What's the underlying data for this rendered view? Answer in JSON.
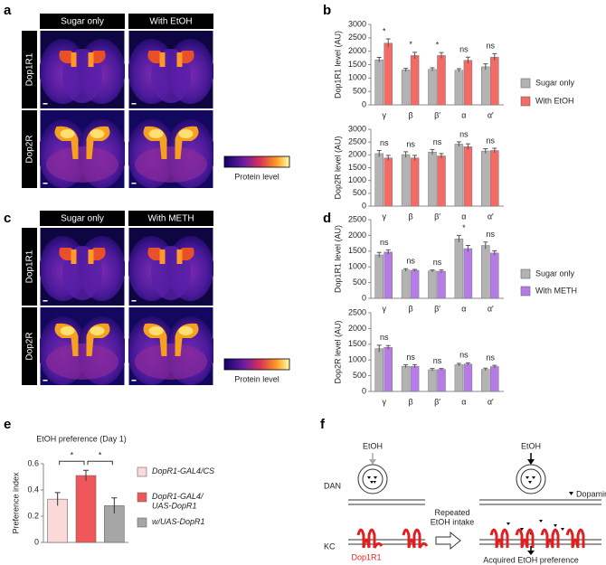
{
  "figure": {
    "panel_letters": [
      "a",
      "b",
      "c",
      "d",
      "e",
      "f"
    ],
    "panel_a": {
      "columns": [
        "Sugar only",
        "With EtOH"
      ],
      "rows": [
        "Dop1R1",
        "Dop2R"
      ],
      "colorbar_label": "Protein level"
    },
    "panel_c": {
      "columns": [
        "Sugar only",
        "With METH"
      ],
      "rows": [
        "Dop1R1",
        "Dop2R"
      ],
      "colorbar_label": "Protein level"
    },
    "panel_f": {
      "cell_top": "DAN",
      "cell_bottom": "KC",
      "stimulus_before": "EtOH",
      "stimulus_after": "EtOH",
      "transition": "Repeated EtOH intake",
      "ligand": "Dopamine",
      "receptor": "Dop1R1",
      "outcome": "Acquired EtOH preference"
    }
  },
  "chart_data": [
    {
      "type": "bar",
      "y_label": "Dop1R1 level (AU)",
      "categories": [
        "γ",
        "β",
        "β′",
        "α",
        "α′"
      ],
      "series": [
        {
          "name": "Sugar only",
          "color": "#b3b3b3",
          "values": [
            1680,
            1300,
            1320,
            1290,
            1420
          ],
          "errors": [
            90,
            60,
            60,
            60,
            110
          ]
        },
        {
          "name": "With EtOH",
          "color": "#f26b64",
          "values": [
            2300,
            1840,
            1840,
            1660,
            1780
          ],
          "errors": [
            160,
            120,
            110,
            120,
            130
          ]
        }
      ],
      "significance": [
        "*",
        "*",
        "*",
        "ns",
        "ns"
      ],
      "ylim": [
        0,
        3000
      ],
      "yticks": [
        0,
        500,
        1000,
        1500,
        2000,
        2500,
        3000
      ]
    },
    {
      "type": "bar",
      "y_label": "Dop2R level (AU)",
      "categories": [
        "γ",
        "β",
        "β′",
        "α",
        "α′"
      ],
      "series": [
        {
          "color": "#b3b3b3",
          "values": [
            2050,
            2010,
            2110,
            2420,
            2150
          ],
          "errors": [
            120,
            110,
            100,
            90,
            90
          ]
        },
        {
          "color": "#f26b64",
          "values": [
            1880,
            1880,
            1960,
            2320,
            2170
          ],
          "errors": [
            100,
            100,
            90,
            110,
            90
          ]
        }
      ],
      "significance": [
        "ns",
        "ns",
        "ns",
        "ns",
        "ns"
      ],
      "ylim": [
        0,
        3000
      ],
      "yticks": [
        0,
        500,
        1000,
        1500,
        2000,
        2500,
        3000
      ]
    },
    {
      "type": "bar",
      "y_label": "Dop1R1 level (AU)",
      "categories": [
        "γ",
        "β",
        "β′",
        "α",
        "α′"
      ],
      "series": [
        {
          "name": "Sugar only",
          "color": "#b3b3b3",
          "values": [
            1380,
            900,
            870,
            1890,
            1680
          ],
          "errors": [
            80,
            40,
            30,
            110,
            110
          ]
        },
        {
          "name": "With METH",
          "color": "#b57ce8",
          "values": [
            1470,
            890,
            860,
            1580,
            1440
          ],
          "errors": [
            70,
            30,
            40,
            100,
            70
          ]
        }
      ],
      "significance": [
        "ns",
        "ns",
        "ns",
        "*",
        "ns"
      ],
      "ylim": [
        0,
        2500
      ],
      "yticks": [
        0,
        500,
        1000,
        1500,
        2000,
        2500
      ]
    },
    {
      "type": "bar",
      "y_label": "Dop2R level (AU)",
      "categories": [
        "γ",
        "β",
        "β′",
        "α",
        "α′"
      ],
      "series": [
        {
          "color": "#b3b3b3",
          "values": [
            1360,
            800,
            690,
            850,
            700
          ],
          "errors": [
            110,
            50,
            40,
            40,
            40
          ]
        },
        {
          "color": "#b57ce8",
          "values": [
            1400,
            800,
            700,
            870,
            790
          ],
          "errors": [
            60,
            50,
            30,
            40,
            40
          ]
        }
      ],
      "significance": [
        "ns",
        "ns",
        "ns",
        "ns",
        "ns"
      ],
      "ylim": [
        0,
        2500
      ],
      "yticks": [
        0,
        500,
        1000,
        1500,
        2000,
        2500
      ]
    },
    {
      "type": "bar",
      "title": "EtOH preference (Day 1)",
      "y_label": "Preference index",
      "series": [
        {
          "name": "DopR1-GAL4/CS",
          "color": "#fbd9d8",
          "values": [
            0.33
          ],
          "errors": [
            0.05
          ]
        },
        {
          "name": "DopR1-GAL4/ UAS-DopR1",
          "color": "#f0575a",
          "values": [
            0.51
          ],
          "errors": [
            0.04
          ]
        },
        {
          "name": "w/UAS-DopR1",
          "color": "#a6a6a6",
          "values": [
            0.28
          ],
          "errors": [
            0.06
          ]
        }
      ],
      "significance": [
        "*",
        "*"
      ],
      "ylim": [
        0,
        0.6
      ],
      "yticks": [
        0,
        0.2,
        0.4,
        0.6
      ]
    }
  ]
}
